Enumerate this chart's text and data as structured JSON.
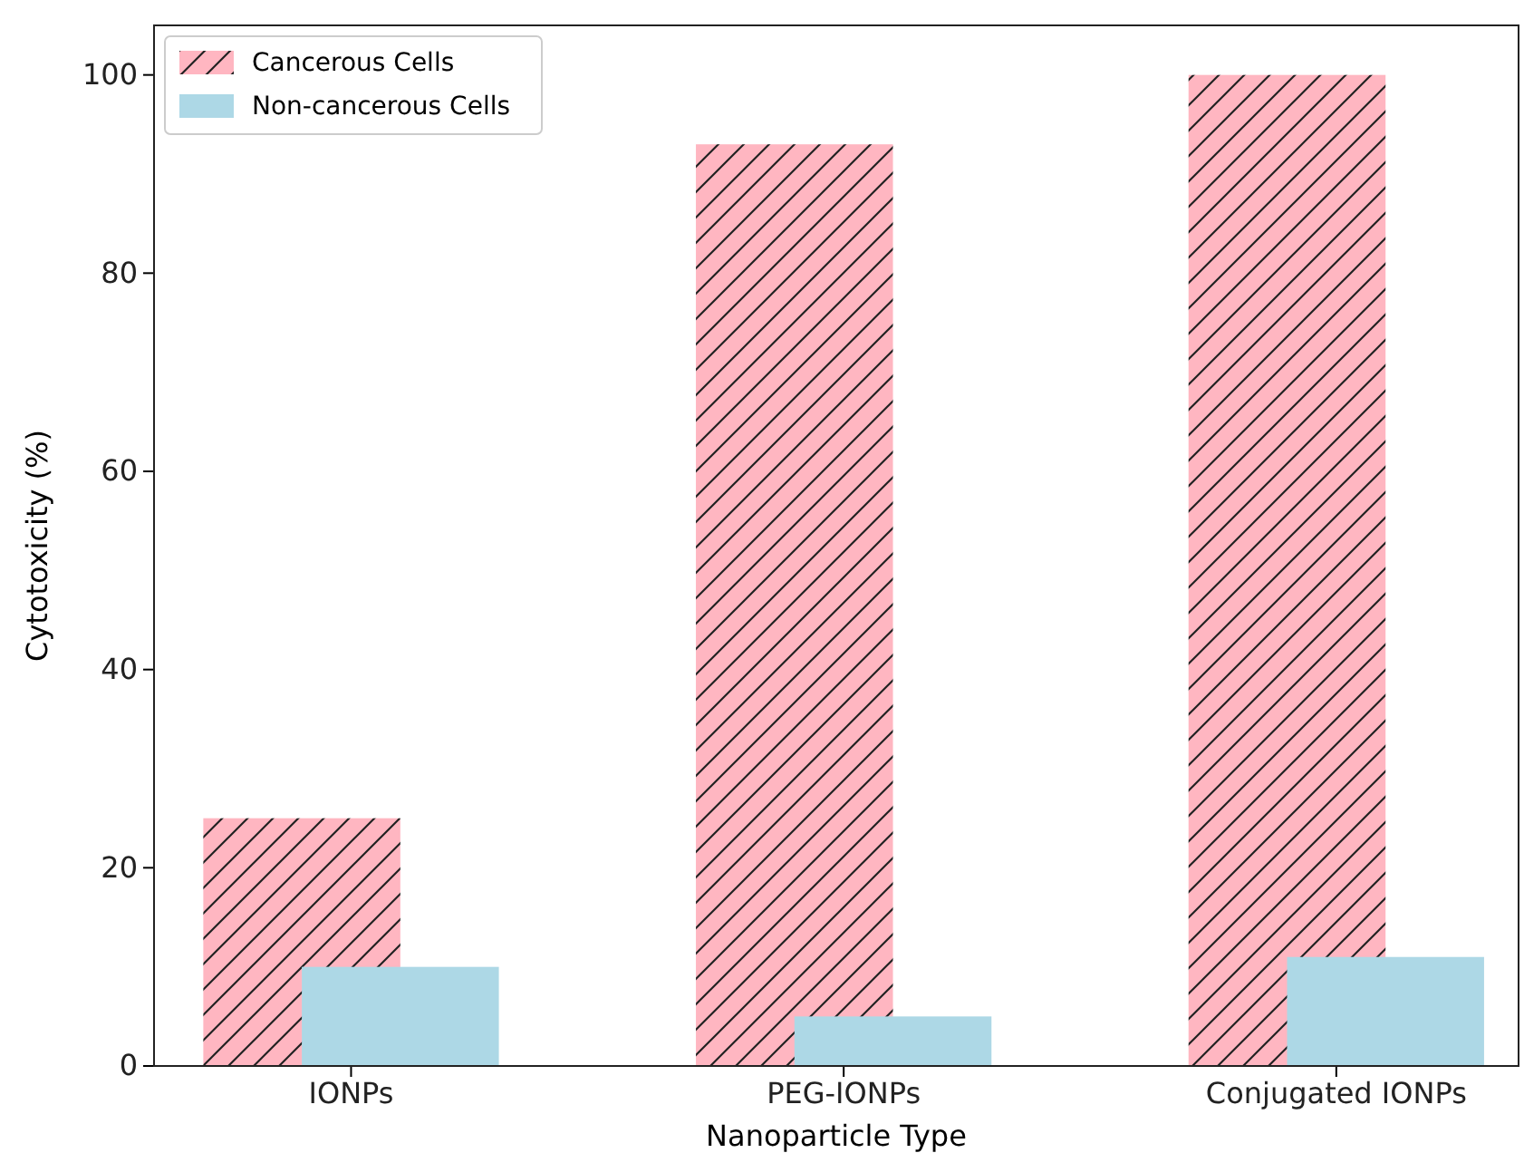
{
  "chart_data": {
    "type": "bar",
    "xlabel": "Nanoparticle Type",
    "ylabel": "Cytotoxicity (%)",
    "categories": [
      "IONPs",
      "PEG-IONPs",
      "Conjugated IONPs"
    ],
    "series": [
      {
        "name": "Cancerous Cells",
        "color": "#ffb6c1",
        "values": [
          25,
          93,
          100
        ]
      },
      {
        "name": "Non-cancerous Cells",
        "color": "#add8e6",
        "values": [
          10,
          5,
          11
        ]
      }
    ],
    "ylim": [
      0,
      105
    ],
    "yticks": [
      0,
      20,
      40,
      60,
      80,
      100
    ],
    "grid": false,
    "legend": "top left"
  }
}
